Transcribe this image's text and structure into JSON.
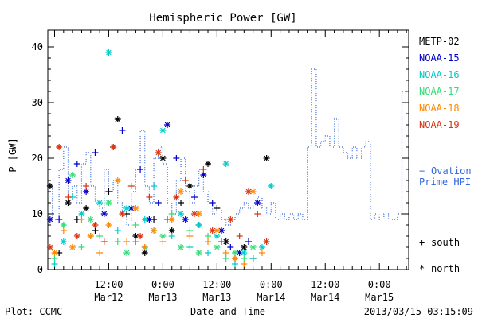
{
  "chart_data": {
    "type": "scatter",
    "title": "Hemispheric Power [GW]",
    "ylabel": "P [GW]",
    "xlabel": "Date and Time",
    "ylim": [
      0,
      43
    ],
    "yticks": [
      0,
      10,
      20,
      30,
      40
    ],
    "x_hours_range": [
      -13.5,
      66.5
    ],
    "xtick_labels": [
      {
        "hour": 0,
        "line1": "12:00",
        "line2": "Mar12"
      },
      {
        "hour": 12,
        "line1": "0:00",
        "line2": "Mar13"
      },
      {
        "hour": 24,
        "line1": "12:00",
        "line2": "Mar13"
      },
      {
        "hour": 36,
        "line1": "0:00",
        "line2": "Mar14"
      },
      {
        "hour": 48,
        "line1": "12:00",
        "line2": "Mar14"
      },
      {
        "hour": 60,
        "line1": "0:00",
        "line2": "Mar15"
      }
    ],
    "footer_left": "Plot: CCMC",
    "footer_right": "2013/03/15 03:15:09",
    "marker_legend": {
      "south": "south",
      "north": "north",
      "south_symbol": "+",
      "north_symbol": "*"
    },
    "series": [
      {
        "name": "METP-02",
        "color": "#000000",
        "points": [
          [
            -13,
            15,
            "n"
          ],
          [
            -9,
            12,
            "n"
          ],
          [
            -7,
            9,
            "s"
          ],
          [
            -5,
            11,
            "n"
          ],
          [
            -3,
            7,
            "s"
          ],
          [
            0,
            14,
            "s"
          ],
          [
            2,
            27,
            "n"
          ],
          [
            4,
            10,
            "s"
          ],
          [
            6,
            6,
            "n"
          ],
          [
            8,
            3,
            "n"
          ],
          [
            10,
            9,
            "s"
          ],
          [
            12,
            20,
            "n"
          ],
          [
            14,
            7,
            "n"
          ],
          [
            16,
            12,
            "s"
          ],
          [
            18,
            15,
            "n"
          ],
          [
            20,
            8,
            "s"
          ],
          [
            22,
            19,
            "n"
          ],
          [
            24,
            11,
            "s"
          ],
          [
            26,
            5,
            "n"
          ],
          [
            28,
            2,
            "s"
          ],
          [
            30,
            4,
            "n"
          ],
          [
            32,
            2,
            "s"
          ],
          [
            35,
            20,
            "n"
          ],
          [
            -11,
            3,
            "s"
          ]
        ]
      },
      {
        "name": "NOAA-15",
        "color": "#0000cc",
        "points": [
          [
            -11,
            9,
            "s"
          ],
          [
            -9,
            16,
            "n"
          ],
          [
            -7,
            19,
            "s"
          ],
          [
            -5,
            14,
            "n"
          ],
          [
            -3,
            21,
            "s"
          ],
          [
            -1,
            10,
            "n"
          ],
          [
            1,
            22,
            "n"
          ],
          [
            3,
            25,
            "s"
          ],
          [
            5,
            11,
            "n"
          ],
          [
            7,
            18,
            "s"
          ],
          [
            9,
            9,
            "n"
          ],
          [
            11,
            12,
            "s"
          ],
          [
            13,
            26,
            "n"
          ],
          [
            15,
            20,
            "s"
          ],
          [
            17,
            9,
            "n"
          ],
          [
            19,
            13,
            "s"
          ],
          [
            21,
            17,
            "n"
          ],
          [
            23,
            12,
            "s"
          ],
          [
            25,
            7,
            "n"
          ],
          [
            27,
            4,
            "s"
          ],
          [
            29,
            3,
            "n"
          ],
          [
            31,
            5,
            "s"
          ],
          [
            -13,
            9,
            "n"
          ],
          [
            33,
            12,
            "n"
          ]
        ]
      },
      {
        "name": "NOAA-16",
        "color": "#00cccc",
        "points": [
          [
            -12,
            1,
            "s"
          ],
          [
            -10,
            5,
            "n"
          ],
          [
            -8,
            13,
            "s"
          ],
          [
            -6,
            10,
            "n"
          ],
          [
            -4,
            6,
            "s"
          ],
          [
            -2,
            12,
            "n"
          ],
          [
            0,
            39,
            "n"
          ],
          [
            2,
            7,
            "s"
          ],
          [
            4,
            11,
            "n"
          ],
          [
            6,
            5,
            "s"
          ],
          [
            8,
            9,
            "n"
          ],
          [
            10,
            15,
            "s"
          ],
          [
            12,
            25,
            "n"
          ],
          [
            14,
            6,
            "s"
          ],
          [
            16,
            10,
            "n"
          ],
          [
            18,
            4,
            "s"
          ],
          [
            20,
            8,
            "n"
          ],
          [
            22,
            3,
            "s"
          ],
          [
            24,
            6,
            "n"
          ],
          [
            26,
            19,
            "n"
          ],
          [
            28,
            1,
            "s"
          ],
          [
            30,
            3,
            "n"
          ],
          [
            32,
            2,
            "s"
          ],
          [
            34,
            4,
            "n"
          ],
          [
            36,
            15,
            "n"
          ]
        ]
      },
      {
        "name": "NOAA-17",
        "color": "#33dd77",
        "points": [
          [
            -12,
            2,
            "s"
          ],
          [
            -10,
            8,
            "n"
          ],
          [
            -8,
            17,
            "n"
          ],
          [
            -6,
            4,
            "s"
          ],
          [
            -4,
            9,
            "n"
          ],
          [
            -2,
            6,
            "s"
          ],
          [
            0,
            12,
            "n"
          ],
          [
            2,
            5,
            "s"
          ],
          [
            4,
            3,
            "n"
          ],
          [
            6,
            8,
            "s"
          ],
          [
            8,
            4,
            "n"
          ],
          [
            10,
            7,
            "s"
          ],
          [
            12,
            6,
            "n"
          ],
          [
            14,
            10,
            "s"
          ],
          [
            16,
            4,
            "n"
          ],
          [
            18,
            7,
            "s"
          ],
          [
            20,
            3,
            "n"
          ],
          [
            22,
            6,
            "s"
          ],
          [
            24,
            4,
            "n"
          ],
          [
            26,
            2,
            "s"
          ],
          [
            28,
            3,
            "n"
          ],
          [
            30,
            2,
            "s"
          ],
          [
            32,
            4,
            "n"
          ]
        ]
      },
      {
        "name": "NOAA-18",
        "color": "#ff8800",
        "points": [
          [
            -12,
            3,
            "n"
          ],
          [
            -10,
            7,
            "s"
          ],
          [
            -8,
            4,
            "n"
          ],
          [
            -6,
            9,
            "s"
          ],
          [
            -4,
            6,
            "n"
          ],
          [
            -2,
            3,
            "s"
          ],
          [
            0,
            8,
            "n"
          ],
          [
            2,
            16,
            "n"
          ],
          [
            4,
            5,
            "s"
          ],
          [
            6,
            11,
            "n"
          ],
          [
            8,
            4,
            "s"
          ],
          [
            10,
            7,
            "n"
          ],
          [
            12,
            5,
            "s"
          ],
          [
            14,
            9,
            "n"
          ],
          [
            16,
            14,
            "n"
          ],
          [
            18,
            6,
            "s"
          ],
          [
            20,
            10,
            "n"
          ],
          [
            22,
            5,
            "s"
          ],
          [
            24,
            7,
            "n"
          ],
          [
            26,
            3,
            "s"
          ],
          [
            28,
            2,
            "n"
          ],
          [
            30,
            1,
            "s"
          ],
          [
            32,
            14,
            "n"
          ],
          [
            34,
            3,
            "s"
          ]
        ]
      },
      {
        "name": "NOAA-19",
        "color": "#dd3311",
        "points": [
          [
            -13,
            4,
            "n"
          ],
          [
            -11,
            22,
            "n"
          ],
          [
            -9,
            13,
            "s"
          ],
          [
            -7,
            6,
            "n"
          ],
          [
            -5,
            15,
            "s"
          ],
          [
            -3,
            8,
            "n"
          ],
          [
            -1,
            5,
            "s"
          ],
          [
            1,
            22,
            "n"
          ],
          [
            3,
            10,
            "n"
          ],
          [
            5,
            15,
            "s"
          ],
          [
            7,
            6,
            "n"
          ],
          [
            9,
            13,
            "s"
          ],
          [
            11,
            21,
            "n"
          ],
          [
            13,
            9,
            "s"
          ],
          [
            15,
            13,
            "n"
          ],
          [
            17,
            16,
            "s"
          ],
          [
            19,
            10,
            "n"
          ],
          [
            21,
            18,
            "s"
          ],
          [
            23,
            7,
            "n"
          ],
          [
            25,
            5,
            "s"
          ],
          [
            27,
            9,
            "n"
          ],
          [
            29,
            6,
            "s"
          ],
          [
            31,
            14,
            "n"
          ],
          [
            33,
            10,
            "s"
          ],
          [
            35,
            5,
            "n"
          ]
        ]
      }
    ],
    "ovation": {
      "name": "Ovation Prime HPI",
      "color": "#3366dd",
      "marker": "−",
      "steps": [
        [
          -13.5,
          15
        ],
        [
          -12.5,
          9
        ],
        [
          -11,
          18
        ],
        [
          -10,
          22
        ],
        [
          -9,
          13
        ],
        [
          -8,
          15
        ],
        [
          -7,
          12
        ],
        [
          -6,
          19
        ],
        [
          -5,
          21
        ],
        [
          -4,
          15
        ],
        [
          -3,
          12
        ],
        [
          -2,
          11
        ],
        [
          -1,
          18
        ],
        [
          0,
          14
        ],
        [
          1,
          16
        ],
        [
          2,
          12
        ],
        [
          3,
          10
        ],
        [
          4,
          8
        ],
        [
          5,
          14
        ],
        [
          6,
          18
        ],
        [
          7,
          25
        ],
        [
          8,
          15
        ],
        [
          9,
          12
        ],
        [
          10,
          20
        ],
        [
          11,
          22
        ],
        [
          12,
          19
        ],
        [
          13,
          12
        ],
        [
          14,
          10
        ],
        [
          15,
          16
        ],
        [
          16,
          20
        ],
        [
          17,
          14
        ],
        [
          18,
          12
        ],
        [
          19,
          15
        ],
        [
          20,
          18
        ],
        [
          21,
          14
        ],
        [
          22,
          12
        ],
        [
          23,
          10
        ],
        [
          24,
          11
        ],
        [
          25,
          9
        ],
        [
          26,
          8
        ],
        [
          27,
          9
        ],
        [
          28,
          10
        ],
        [
          29,
          11
        ],
        [
          30,
          12
        ],
        [
          31,
          11
        ],
        [
          32,
          12
        ],
        [
          33,
          13
        ],
        [
          34,
          11
        ],
        [
          35,
          10
        ],
        [
          36,
          12
        ],
        [
          37,
          9
        ],
        [
          38,
          10
        ],
        [
          39,
          9
        ],
        [
          40,
          10
        ],
        [
          41,
          9
        ],
        [
          42,
          10
        ],
        [
          43,
          9
        ],
        [
          44,
          22
        ],
        [
          45,
          36
        ],
        [
          46,
          22
        ],
        [
          47,
          23
        ],
        [
          48,
          24
        ],
        [
          49,
          22
        ],
        [
          50,
          27
        ],
        [
          51,
          22
        ],
        [
          52,
          21
        ],
        [
          53,
          20
        ],
        [
          54,
          22
        ],
        [
          55,
          20
        ],
        [
          56,
          22
        ],
        [
          57,
          23
        ],
        [
          58,
          9
        ],
        [
          59,
          10
        ],
        [
          60,
          9
        ],
        [
          61,
          10
        ],
        [
          62,
          9
        ],
        [
          63,
          9
        ],
        [
          64,
          10
        ],
        [
          65,
          32
        ],
        [
          66.5,
          32
        ]
      ]
    }
  }
}
